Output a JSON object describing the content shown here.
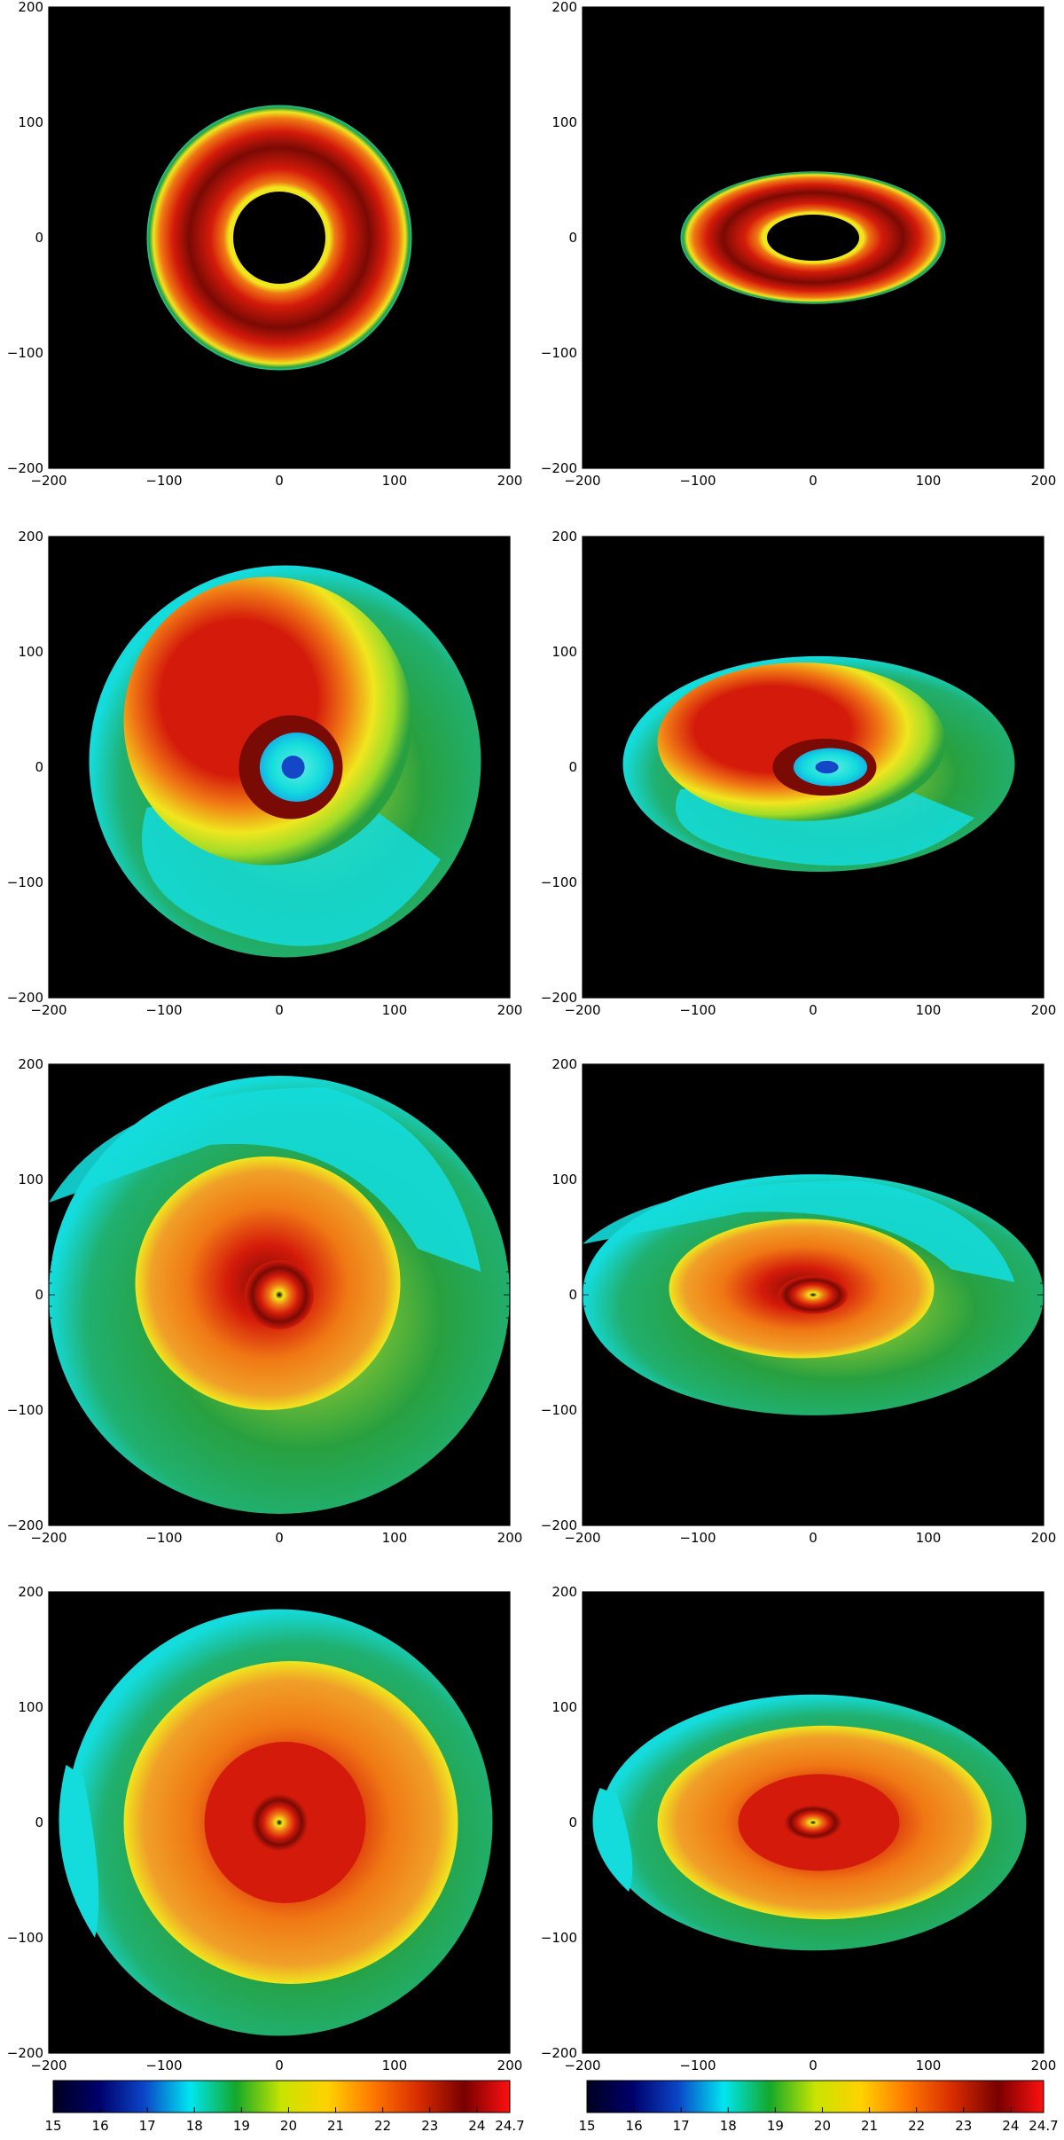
{
  "figure": {
    "panel_axis": {
      "x_ticks": [
        "−200",
        "−100",
        "0",
        "100",
        "200"
      ],
      "y_ticks": [
        "−200",
        "−100",
        "0",
        "100",
        "200"
      ]
    },
    "panels": [
      {
        "row": 1,
        "col": 1,
        "view": "face-on"
      },
      {
        "row": 1,
        "col": 2,
        "view": "inclined"
      },
      {
        "row": 2,
        "col": 1,
        "view": "face-on"
      },
      {
        "row": 2,
        "col": 2,
        "view": "inclined"
      },
      {
        "row": 3,
        "col": 1,
        "view": "face-on"
      },
      {
        "row": 3,
        "col": 2,
        "view": "inclined"
      },
      {
        "row": 4,
        "col": 1,
        "view": "face-on"
      },
      {
        "row": 4,
        "col": 2,
        "view": "inclined"
      }
    ],
    "colorbar": {
      "labels": [
        "15",
        "16",
        "17",
        "18",
        "19",
        "20",
        "21",
        "22",
        "23",
        "24",
        "24.7"
      ],
      "min": 15,
      "max": 24.7,
      "stops": [
        "#000020",
        "#00006a",
        "#0a46c8",
        "#00e6f0",
        "#14a82a",
        "#c8e400",
        "#ffd200",
        "#ff7800",
        "#d82c00",
        "#780000",
        "#ff1010"
      ]
    },
    "colors": {
      "background": "#000000",
      "red": "#d41a0a",
      "dark_red": "#7a0a04",
      "orange": "#f07814",
      "yellow": "#f0e61e",
      "green": "#28a040",
      "cyan": "#14dcdc",
      "blue": "#1446c8"
    }
  }
}
